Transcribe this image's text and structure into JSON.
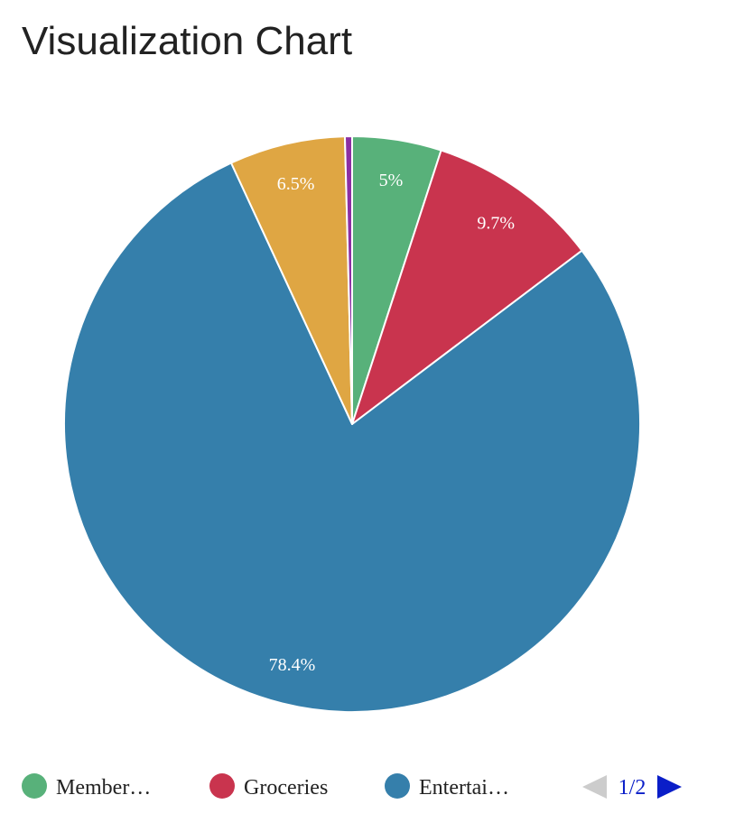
{
  "page": {
    "title": "Visualization Chart"
  },
  "chart_data": {
    "type": "pie",
    "slices": [
      {
        "label": "Member…",
        "value": 5.0,
        "display": "5%",
        "color": "#58b17a",
        "show_label": true
      },
      {
        "label": "Groceries",
        "value": 9.7,
        "display": "9.7%",
        "color": "#c9344e",
        "show_label": true
      },
      {
        "label": "Entertai…",
        "value": 78.4,
        "display": "78.4%",
        "color": "#357fab",
        "show_label": true
      },
      {
        "label": "",
        "value": 6.5,
        "display": "6.5%",
        "color": "#dfa643",
        "show_label": true
      },
      {
        "label": "",
        "value": 0.4,
        "display": "",
        "color": "#8b2fa3",
        "show_label": false
      }
    ],
    "legend": {
      "placement": "bottom",
      "items": [
        {
          "label": "Member…",
          "color": "#58b17a"
        },
        {
          "label": "Groceries",
          "color": "#c9344e"
        },
        {
          "label": "Entertai…",
          "color": "#357fab"
        }
      ],
      "pager": {
        "text": "1/2",
        "prev_color": "#cccccc",
        "next_color": "#0a1ec8",
        "text_color": "#0a1ec8"
      }
    }
  }
}
